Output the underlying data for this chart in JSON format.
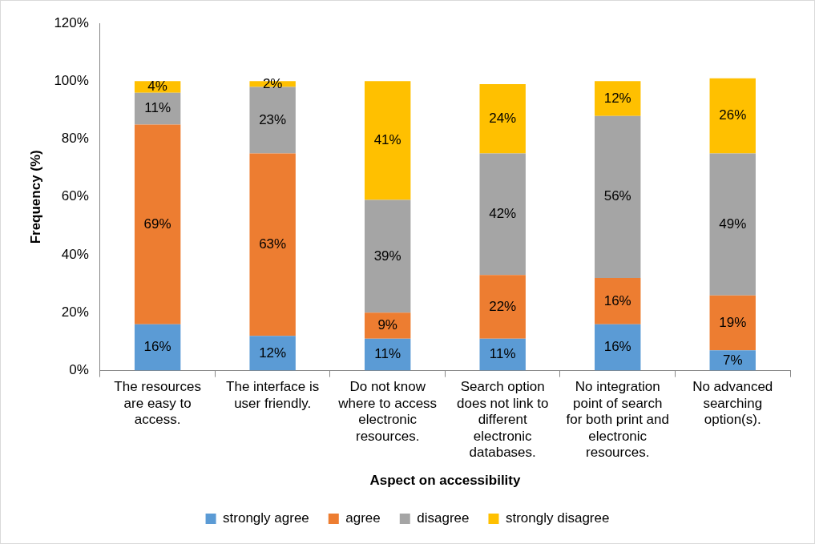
{
  "chart_data": {
    "type": "bar",
    "stacked": true,
    "xlabel": "Aspect on accessibility",
    "ylabel": "Frequency (%)",
    "categories": [
      "The resources are easy to access.",
      "The interface is user friendly.",
      "Do not know where to access electronic resources.",
      "Search option does not link to different electronic databases.",
      "No integration point of search for both print and electronic resources.",
      "No advanced searching option(s)."
    ],
    "series": [
      {
        "name": "strongly agree",
        "color": "#5b9bd5",
        "values": [
          16,
          12,
          11,
          11,
          16,
          7
        ],
        "value_labels": [
          "16%",
          "12%",
          "11%",
          "11%",
          "16%",
          "7%"
        ]
      },
      {
        "name": "agree",
        "color": "#ed7d31",
        "values": [
          69,
          63,
          9,
          22,
          16,
          19
        ],
        "value_labels": [
          "69%",
          "63%",
          "9%",
          "22%",
          "16%",
          "19%"
        ]
      },
      {
        "name": "disagree",
        "color": "#a5a5a5",
        "values": [
          11,
          23,
          39,
          42,
          56,
          49
        ],
        "value_labels": [
          "11%",
          "23%",
          "39%",
          "42%",
          "56%",
          "49%"
        ]
      },
      {
        "name": "strongly disagree",
        "color": "#ffc000",
        "values": [
          4,
          2,
          41,
          24,
          12,
          26
        ],
        "value_labels": [
          "4%",
          "2%",
          "41%",
          "24%",
          "12%",
          "26%"
        ]
      }
    ],
    "ylim": [
      0,
      120
    ],
    "yticks": [
      {
        "value": 0,
        "label": "0%"
      },
      {
        "value": 20,
        "label": "20%"
      },
      {
        "value": 40,
        "label": "40%"
      },
      {
        "value": 60,
        "label": "60%"
      },
      {
        "value": 80,
        "label": "80%"
      },
      {
        "value": 100,
        "label": "100%"
      },
      {
        "value": 120,
        "label": "120%"
      }
    ],
    "grid": false,
    "legend": "bottom"
  }
}
